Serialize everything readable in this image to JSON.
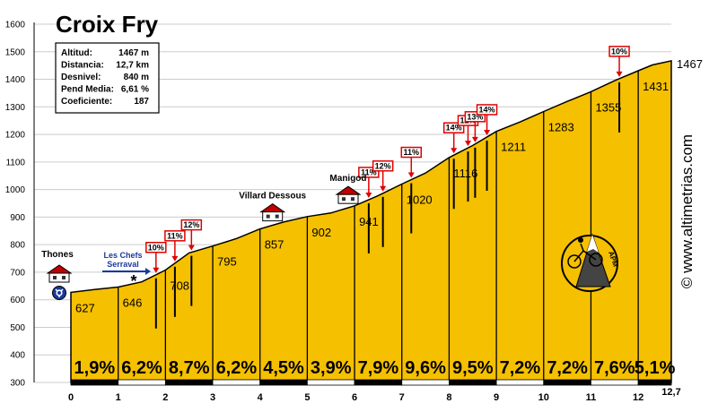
{
  "chart_data": {
    "type": "area",
    "title": "Croix Fry",
    "info": [
      {
        "label": "Altitud:",
        "value": "1467 m"
      },
      {
        "label": "Distancia:",
        "value": "12,7 km"
      },
      {
        "label": "Desnivel:",
        "value": "840 m"
      },
      {
        "label": "Pend Media:",
        "value": "6,61 %"
      },
      {
        "label": "Coeficiente:",
        "value": "187"
      }
    ],
    "y_ticks": [
      "300",
      "400",
      "500",
      "600",
      "700",
      "800",
      "900",
      "1000",
      "1100",
      "1200",
      "1300",
      "1400",
      "1500",
      "1600"
    ],
    "ylim": [
      300,
      1600
    ],
    "x_ticks": [
      "0",
      "1",
      "2",
      "3",
      "4",
      "5",
      "6",
      "7",
      "8",
      "9",
      "10",
      "11",
      "12",
      "12,7"
    ],
    "xlim": [
      0,
      12.7
    ],
    "profile": [
      {
        "km": 0,
        "alt": 627
      },
      {
        "km": 0.5,
        "alt": 637
      },
      {
        "km": 1,
        "alt": 646
      },
      {
        "km": 1.5,
        "alt": 665
      },
      {
        "km": 2,
        "alt": 708
      },
      {
        "km": 2.5,
        "alt": 770
      },
      {
        "km": 3,
        "alt": 795
      },
      {
        "km": 3.5,
        "alt": 822
      },
      {
        "km": 4,
        "alt": 857
      },
      {
        "km": 4.5,
        "alt": 882
      },
      {
        "km": 5,
        "alt": 902
      },
      {
        "km": 5.5,
        "alt": 915
      },
      {
        "km": 6,
        "alt": 941
      },
      {
        "km": 6.5,
        "alt": 978
      },
      {
        "km": 7,
        "alt": 1020
      },
      {
        "km": 7.5,
        "alt": 1060
      },
      {
        "km": 8,
        "alt": 1116
      },
      {
        "km": 8.5,
        "alt": 1160
      },
      {
        "km": 9,
        "alt": 1211
      },
      {
        "km": 9.5,
        "alt": 1245
      },
      {
        "km": 10,
        "alt": 1283
      },
      {
        "km": 10.5,
        "alt": 1320
      },
      {
        "km": 11,
        "alt": 1355
      },
      {
        "km": 11.5,
        "alt": 1395
      },
      {
        "km": 12,
        "alt": 1431
      },
      {
        "km": 12.3,
        "alt": 1452
      },
      {
        "km": 12.7,
        "alt": 1467
      }
    ],
    "km_altitudes": [
      {
        "km": 0,
        "label": "627"
      },
      {
        "km": 1,
        "label": "646"
      },
      {
        "km": 2,
        "label": "708"
      },
      {
        "km": 3,
        "label": "795"
      },
      {
        "km": 4,
        "label": "857"
      },
      {
        "km": 5,
        "label": "902"
      },
      {
        "km": 6,
        "label": "941"
      },
      {
        "km": 7,
        "label": "1020"
      },
      {
        "km": 8,
        "label": "1116"
      },
      {
        "km": 9,
        "label": "1211"
      },
      {
        "km": 10,
        "label": "1283"
      },
      {
        "km": 11,
        "label": "1355"
      },
      {
        "km": 12,
        "label": "1431"
      }
    ],
    "summit_label": "1467",
    "gradients": [
      {
        "from": 0,
        "to": 1,
        "label": "1,9%"
      },
      {
        "from": 1,
        "to": 2,
        "label": "6,2%"
      },
      {
        "from": 2,
        "to": 3,
        "label": "8,7%"
      },
      {
        "from": 3,
        "to": 4,
        "label": "6,2%"
      },
      {
        "from": 4,
        "to": 5,
        "label": "4,5%"
      },
      {
        "from": 5,
        "to": 6,
        "label": "3,9%"
      },
      {
        "from": 6,
        "to": 7,
        "label": "7,9%"
      },
      {
        "from": 7,
        "to": 8,
        "label": "9,6%"
      },
      {
        "from": 8,
        "to": 9,
        "label": "9,5%"
      },
      {
        "from": 9,
        "to": 10,
        "label": "7,2%"
      },
      {
        "from": 10,
        "to": 11,
        "label": "7,2%"
      },
      {
        "from": 11,
        "to": 12,
        "label": "7,6%"
      },
      {
        "from": 12,
        "to": 12.7,
        "label": "5,1%"
      }
    ],
    "ramps": [
      {
        "km": 1.8,
        "label": "10%"
      },
      {
        "km": 2.2,
        "label": "11%"
      },
      {
        "km": 2.55,
        "label": "12%"
      },
      {
        "km": 6.3,
        "label": "11%"
      },
      {
        "km": 6.6,
        "label": "12%"
      },
      {
        "km": 7.2,
        "label": "11%"
      },
      {
        "km": 8.1,
        "label": "14%"
      },
      {
        "km": 8.4,
        "label": "12%"
      },
      {
        "km": 8.55,
        "label": "13%"
      },
      {
        "km": 8.8,
        "label": "14%"
      },
      {
        "km": 11.6,
        "label": "10%"
      }
    ],
    "places": [
      {
        "name": "Thones",
        "km": 0
      },
      {
        "name": "Villard Dessous",
        "km": 4
      },
      {
        "name": "Manigod",
        "km": 5.6
      }
    ],
    "side_road": {
      "line1": "Les Chefs",
      "line2": "Serraval",
      "marker": "*"
    },
    "brand": "© www.altimetrias.com",
    "logo_text": "APM",
    "colors": {
      "fill": "#F5C000",
      "grid": "#CCCCCC",
      "flag": "#E00000",
      "road_label": "#1A3A9A"
    }
  }
}
